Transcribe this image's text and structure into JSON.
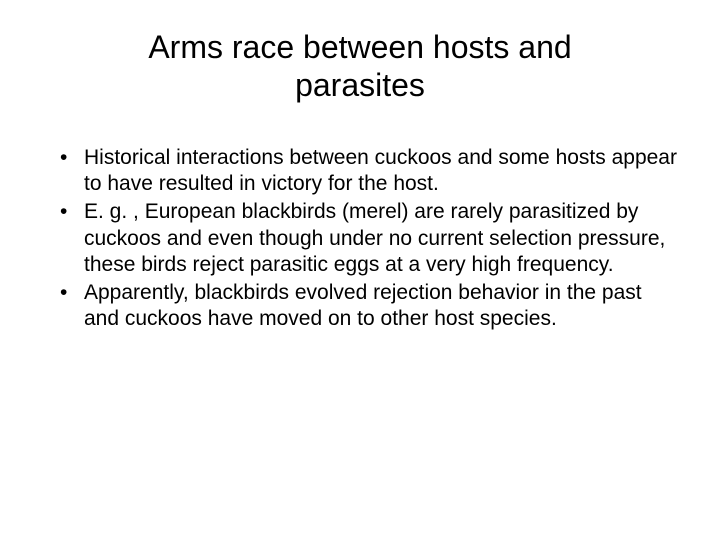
{
  "slide": {
    "title": "Arms race between hosts and parasites",
    "bullets": [
      "Historical interactions between cuckoos and some hosts appear to have resulted in victory for the host.",
      "E. g. , European blackbirds (merel) are rarely parasitized by cuckoos and even though under no current selection pressure, these birds reject parasitic eggs at a very high frequency.",
      "Apparently, blackbirds evolved rejection behavior in the past and cuckoos have moved on to other host species."
    ],
    "title_fontsize": 32,
    "body_fontsize": 21,
    "background_color": "#ffffff",
    "text_color": "#000000",
    "font_family": "Arial"
  }
}
